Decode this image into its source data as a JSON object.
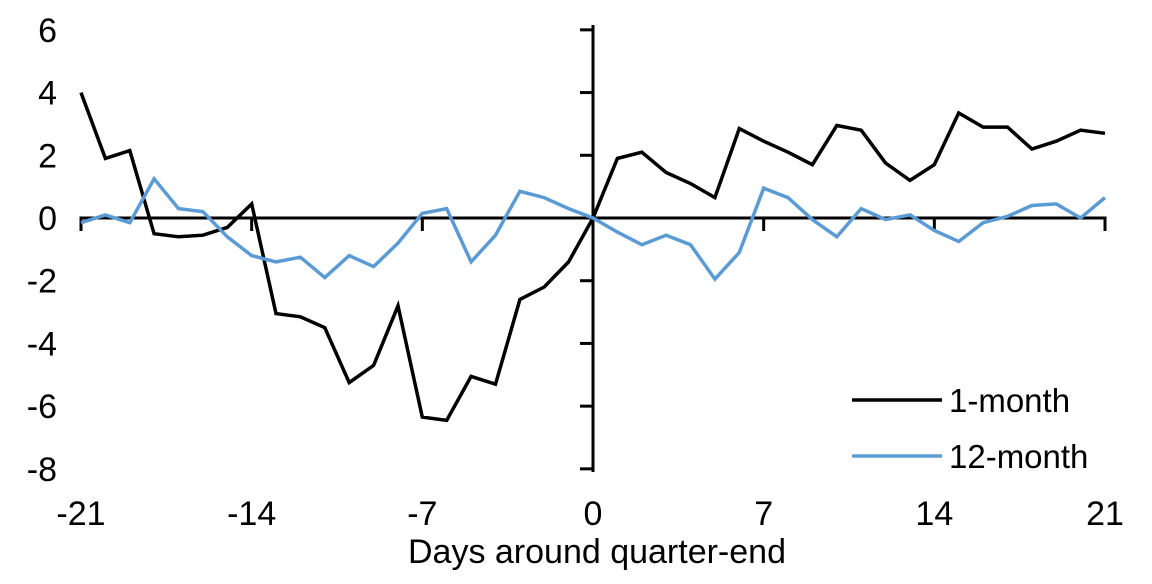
{
  "figure": {
    "background": "#ffffff"
  },
  "chart_data": {
    "type": "line",
    "title": "",
    "xlabel": "Days around quarter-end",
    "ylabel": "",
    "xlim": [
      -21,
      21
    ],
    "ylim": [
      -8,
      6
    ],
    "x_ticks": [
      -21,
      -14,
      -7,
      0,
      7,
      14,
      21
    ],
    "y_ticks": [
      6,
      4,
      2,
      0,
      -2,
      -4,
      -6,
      -8
    ],
    "grid": false,
    "legend_position": "lower right",
    "axis_color": "#000000",
    "x": [
      -21,
      -20,
      -19,
      -18,
      -17,
      -16,
      -15,
      -14,
      -13,
      -12,
      -11,
      -10,
      -9,
      -8,
      -7,
      -6,
      -5,
      -4,
      -3,
      -2,
      -1,
      0,
      1,
      2,
      3,
      4,
      5,
      6,
      7,
      8,
      9,
      10,
      11,
      12,
      13,
      14,
      15,
      16,
      17,
      18,
      19,
      20,
      21
    ],
    "series": [
      {
        "name": "1-month",
        "color": "#000000",
        "values": [
          4.0,
          1.9,
          2.15,
          -0.5,
          -0.6,
          -0.55,
          -0.3,
          0.45,
          -3.05,
          -3.15,
          -3.5,
          -5.25,
          -4.7,
          -2.8,
          -6.35,
          -6.45,
          -5.05,
          -5.3,
          -2.6,
          -2.2,
          -1.4,
          0.0,
          1.9,
          2.1,
          1.45,
          1.1,
          0.65,
          2.85,
          2.45,
          2.1,
          1.7,
          2.95,
          2.8,
          1.75,
          1.2,
          1.7,
          3.35,
          2.9,
          2.9,
          2.2,
          2.45,
          2.8,
          2.7
        ]
      },
      {
        "name": "12-month",
        "color": "#5B9BD5",
        "values": [
          -0.15,
          0.1,
          -0.15,
          1.25,
          0.3,
          0.2,
          -0.6,
          -1.2,
          -1.4,
          -1.25,
          -1.9,
          -1.2,
          -1.55,
          -0.8,
          0.15,
          0.3,
          -1.4,
          -0.55,
          0.85,
          0.65,
          0.3,
          0.0,
          -0.45,
          -0.85,
          -0.55,
          -0.85,
          -1.95,
          -1.1,
          0.95,
          0.65,
          -0.05,
          -0.6,
          0.3,
          -0.05,
          0.1,
          -0.4,
          -0.75,
          -0.15,
          0.05,
          0.4,
          0.45,
          0.0,
          0.65
        ]
      }
    ]
  }
}
